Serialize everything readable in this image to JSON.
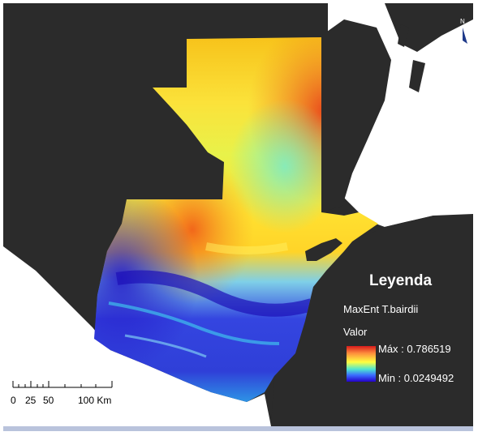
{
  "legend": {
    "title": "Leyenda",
    "layer_name": "MaxEnt T.bairdii",
    "field_label": "Valor",
    "max_label": "Máx : 0.786519",
    "min_label": "Min : 0.0249492",
    "ramp_colors": [
      "#d7191c",
      "#fd8d3c",
      "#ffff3f",
      "#4ee6d0",
      "#3a6bff",
      "#2400c8"
    ]
  },
  "scale_bar": {
    "labels": [
      "0",
      "25",
      "50",
      "100 Km"
    ]
  },
  "north_arrow": {
    "label": "N",
    "icon": "north-arrow-icon"
  },
  "colors": {
    "background_land": "#2b2b2b",
    "ocean": "#ffffff",
    "text": "#ffffff"
  }
}
